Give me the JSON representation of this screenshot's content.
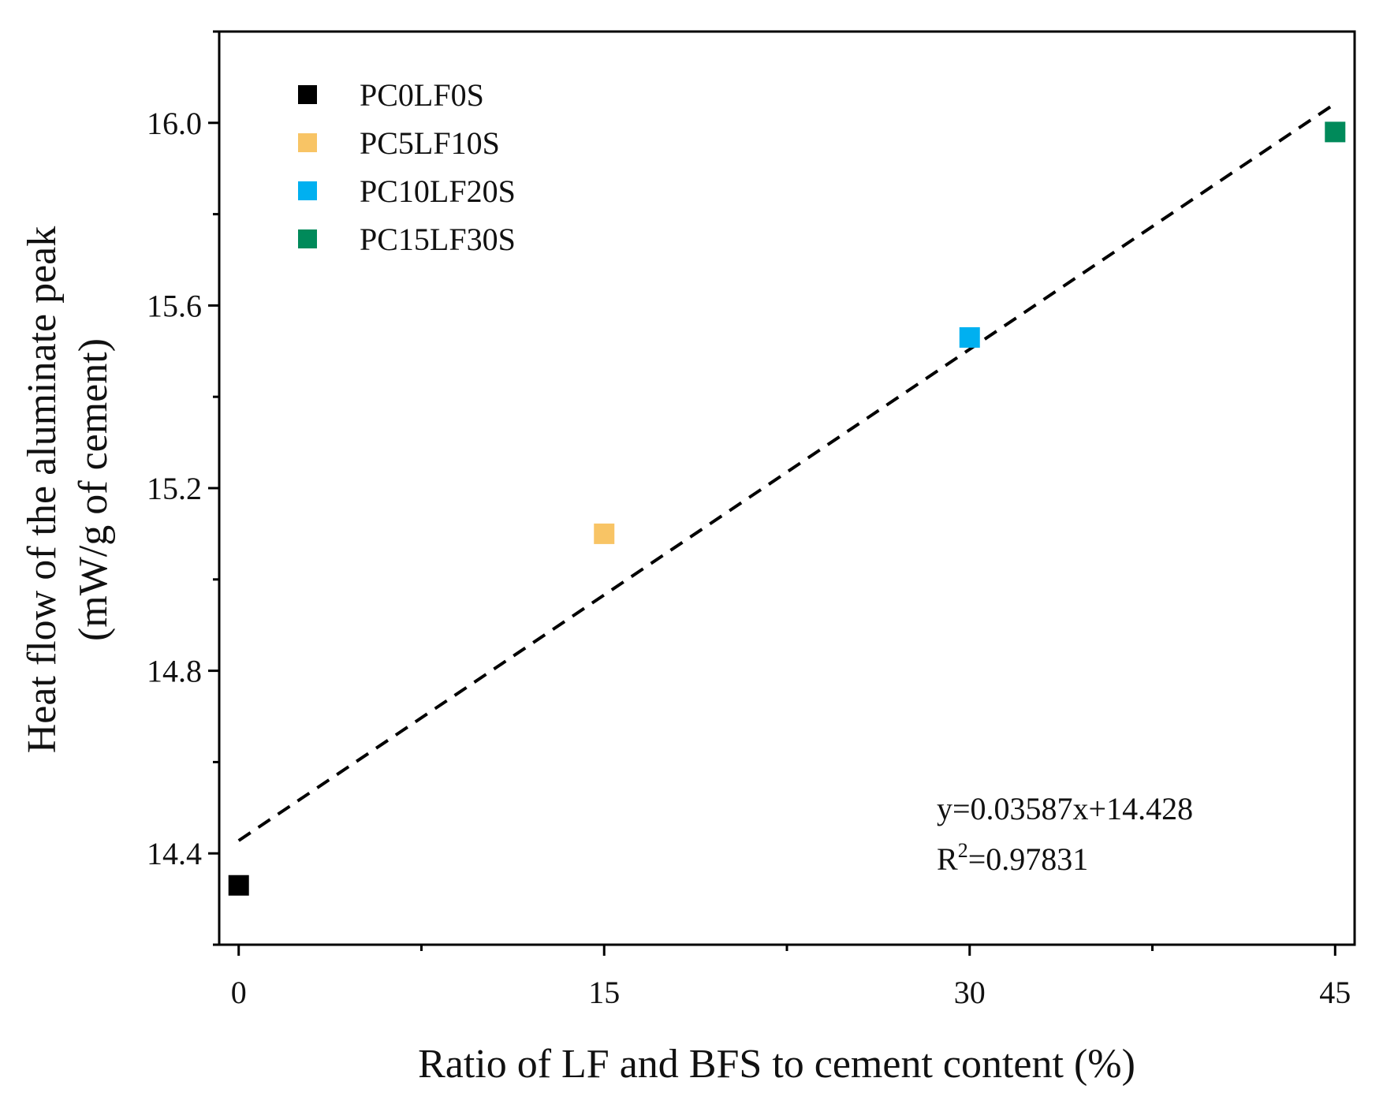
{
  "chart_data": {
    "type": "scatter",
    "xlabel": "Ratio of LF and BFS  to cement content (%)",
    "ylabel_line1": "Heat flow of the aluminate peak",
    "ylabel_line2": "(mW/g of cement)",
    "xlim": [
      -0.8,
      45.8
    ],
    "ylim": [
      14.2,
      16.2
    ],
    "xticks": [
      0,
      15,
      30,
      45
    ],
    "xminor": [
      7.5,
      22.5,
      37.5
    ],
    "yticks": [
      14.4,
      14.8,
      15.2,
      15.6,
      16.0
    ],
    "yminor": [
      14.2,
      14.6,
      15.0,
      15.4,
      15.8,
      16.2
    ],
    "ytick_labels": [
      "14.4",
      "14.8",
      "15.2",
      "15.6",
      "16.0"
    ],
    "series": [
      {
        "name": "PC0LF0S",
        "x": 0,
        "y": 14.33,
        "color": "#000000"
      },
      {
        "name": "PC5LF10S",
        "x": 15,
        "y": 15.1,
        "color": "#F8C465"
      },
      {
        "name": "PC10LF20S",
        "x": 30,
        "y": 15.53,
        "color": "#00B0F0"
      },
      {
        "name": "PC15LF30S",
        "x": 45,
        "y": 15.98,
        "color": "#008A5A"
      }
    ],
    "fit": {
      "slope": 0.03587,
      "intercept": 14.428,
      "x_range": [
        0,
        45
      ],
      "style": "dashed"
    },
    "equation_text": "y=0.03587x+14.428",
    "r2_prefix": "R",
    "r2_superscript": "2",
    "r2_value": "=0.97831",
    "legend_position": "top-left"
  }
}
